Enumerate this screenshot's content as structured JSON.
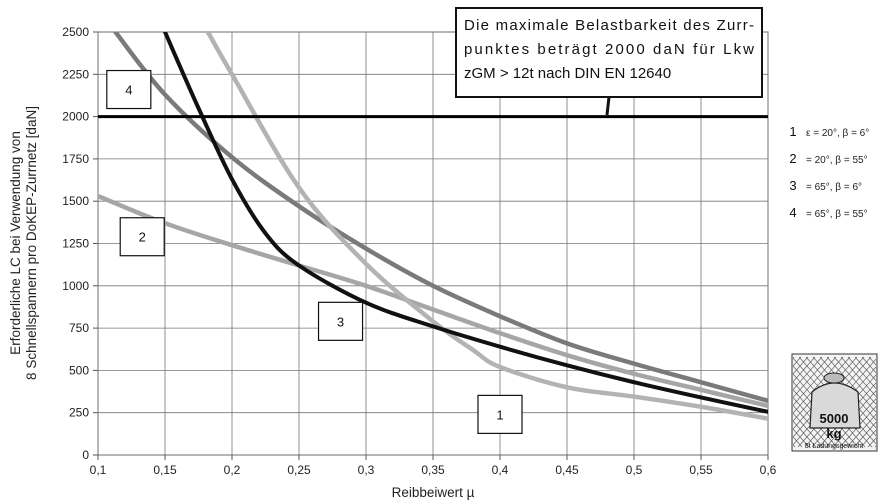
{
  "chart_data": {
    "type": "line",
    "xlabel": "Reibbeiwert µ",
    "ylabel_lines": [
      "Erforderliche LC bei Verwendung von",
      "8 Schnellspannern pro DoKEP-Zurrnetz [daN]"
    ],
    "xlim": [
      0.1,
      0.6
    ],
    "ylim": [
      0,
      2500
    ],
    "x_ticks": [
      "0,1",
      "0,15",
      "0,2",
      "0,25",
      "0,3",
      "0,35",
      "0,4",
      "0,45",
      "0,5",
      "0,55",
      "0,6"
    ],
    "y_ticks": [
      "0",
      "250",
      "500",
      "750",
      "1000",
      "1250",
      "1500",
      "1750",
      "2000",
      "2250",
      "2500"
    ],
    "grid": true,
    "series": [
      {
        "key": "1",
        "color": "#b3b3b3",
        "x": [
          0.182,
          0.2,
          0.25,
          0.3,
          0.35,
          0.38,
          0.4,
          0.45,
          0.5,
          0.55,
          0.6
        ],
        "y": [
          2500,
          2250,
          1580,
          1130,
          790,
          620,
          520,
          400,
          345,
          285,
          215
        ]
      },
      {
        "key": "2",
        "color": "#a6a6a6",
        "x": [
          0.1,
          0.15,
          0.2,
          0.25,
          0.3,
          0.35,
          0.4,
          0.45,
          0.5,
          0.55,
          0.6
        ],
        "y": [
          1530,
          1370,
          1240,
          1120,
          1000,
          860,
          720,
          590,
          480,
          385,
          290
        ]
      },
      {
        "key": "3",
        "color": "#111111",
        "x": [
          0.15,
          0.175,
          0.2,
          0.225,
          0.25,
          0.3,
          0.35,
          0.4,
          0.45,
          0.5,
          0.55,
          0.6
        ],
        "y": [
          2500,
          2050,
          1630,
          1310,
          1120,
          900,
          760,
          640,
          530,
          430,
          340,
          255
        ]
      },
      {
        "key": "4",
        "color": "#7a7a7a",
        "x": [
          0.113,
          0.15,
          0.2,
          0.25,
          0.3,
          0.35,
          0.4,
          0.45,
          0.5,
          0.55,
          0.6
        ],
        "y": [
          2500,
          2130,
          1760,
          1470,
          1220,
          1000,
          820,
          660,
          540,
          430,
          320
        ]
      }
    ],
    "limit_line": {
      "y": 2000,
      "color": "#000000"
    },
    "legend": [
      {
        "num": "1",
        "text": "ε = 20°, β = 6°"
      },
      {
        "num": "2",
        "text": "= 20°, β = 55°"
      },
      {
        "num": "3",
        "text": "= 65°, β = 6°"
      },
      {
        "num": "4",
        "text": "= 65°, β = 55°"
      }
    ],
    "boxed_labels": [
      {
        "text": "1",
        "x": 0.4,
        "y": 240
      },
      {
        "text": "2",
        "x": 0.133,
        "y": 1290
      },
      {
        "text": "3",
        "x": 0.281,
        "y": 790
      },
      {
        "text": "4",
        "x": 0.123,
        "y": 2160
      }
    ],
    "note_lines": [
      "Die maximale Belastbarkeit des Zurr-",
      "punktes beträgt 2000 daN für Lkw",
      "zGM > 12t nach DIN EN 12640"
    ],
    "logo": {
      "weight": "5000",
      "unit": "kg",
      "caption": "5t Ladungsgewicht"
    }
  }
}
